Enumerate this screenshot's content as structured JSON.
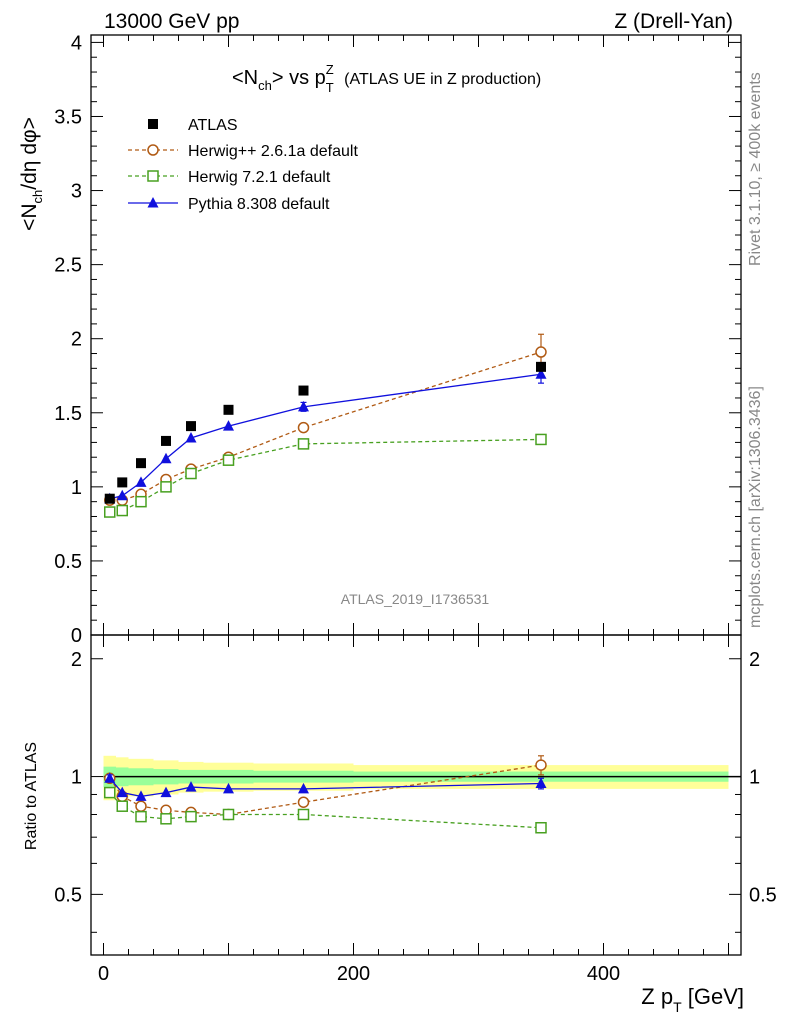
{
  "header": {
    "left": "13000 GeV pp",
    "right": "Z (Drell-Yan)"
  },
  "side": {
    "rivet": "Rivet 3.1.10, ≥ 400k events",
    "mcplots": "mcplots.cern.ch [arXiv:1306.3436]"
  },
  "chart_data": [
    {
      "type": "scatter",
      "title": "<N_ch> vs p_T^Z (ATLAS UE in Z production)",
      "ylabel": "<N_ch/dη dφ>",
      "xlim": [
        -10,
        510
      ],
      "ylim": [
        0,
        4.05
      ],
      "yticks": [
        0,
        0.5,
        1,
        1.5,
        2,
        2.5,
        3,
        3.5,
        4
      ],
      "legend": "top-left",
      "analysis_label": "ATLAS_2019_I1736531",
      "series": [
        {
          "name": "ATLAS",
          "color": "#000000",
          "marker": "filled-square",
          "x": [
            5,
            15,
            30,
            50,
            70,
            100,
            160,
            350
          ],
          "y": [
            0.92,
            1.03,
            1.16,
            1.31,
            1.41,
            1.52,
            1.65,
            1.81
          ]
        },
        {
          "name": "Herwig++ 2.6.1a default",
          "color": "#b05a14",
          "marker": "open-circle",
          "line": "dashed",
          "x": [
            5,
            15,
            30,
            50,
            70,
            100,
            160,
            350
          ],
          "y": [
            0.91,
            0.91,
            0.95,
            1.05,
            1.12,
            1.2,
            1.4,
            1.91
          ],
          "err": [
            0,
            0,
            0,
            0,
            0,
            0,
            0.03,
            0.12
          ]
        },
        {
          "name": "Herwig 7.2.1 default",
          "color": "#48a020",
          "marker": "open-square",
          "line": "dashed",
          "x": [
            5,
            15,
            30,
            50,
            70,
            100,
            160,
            350
          ],
          "y": [
            0.83,
            0.84,
            0.9,
            1.0,
            1.09,
            1.18,
            1.29,
            1.32
          ]
        },
        {
          "name": "Pythia 8.308 default",
          "color": "#1010dd",
          "marker": "filled-triangle",
          "line": "solid",
          "x": [
            5,
            15,
            30,
            50,
            70,
            100,
            160,
            350
          ],
          "y": [
            0.92,
            0.94,
            1.03,
            1.19,
            1.33,
            1.41,
            1.54,
            1.76
          ],
          "err": [
            0,
            0,
            0,
            0,
            0,
            0,
            0.03,
            0.06
          ]
        }
      ]
    },
    {
      "type": "scatter",
      "xlabel": "Z p_T [GeV]",
      "ylabel": "Ratio to ATLAS",
      "xlim": [
        -10,
        510
      ],
      "xticks": [
        0,
        200,
        400
      ],
      "ylim": [
        0.35,
        2.3
      ],
      "yscale": "log",
      "yticks": [
        0.5,
        1,
        2
      ],
      "bands": {
        "x_edges": [
          0,
          10,
          20,
          40,
          60,
          80,
          120,
          200,
          500
        ],
        "yellow_half_width": [
          0.13,
          0.12,
          0.11,
          0.1,
          0.09,
          0.085,
          0.08,
          0.07
        ],
        "green_half_width": [
          0.06,
          0.055,
          0.05,
          0.045,
          0.04,
          0.04,
          0.035,
          0.03
        ]
      },
      "series": [
        {
          "name": "Herwig++ 2.6.1a default",
          "x": [
            5,
            15,
            30,
            50,
            70,
            100,
            160,
            350
          ],
          "y": [
            0.99,
            0.89,
            0.84,
            0.82,
            0.81,
            0.8,
            0.86,
            1.07
          ],
          "err": [
            0,
            0,
            0,
            0,
            0,
            0,
            0.02,
            0.06
          ]
        },
        {
          "name": "Herwig 7.2.1 default",
          "x": [
            5,
            15,
            30,
            50,
            70,
            100,
            160,
            350
          ],
          "y": [
            0.91,
            0.84,
            0.79,
            0.78,
            0.79,
            0.8,
            0.8,
            0.74
          ]
        },
        {
          "name": "Pythia 8.308 default",
          "x": [
            5,
            15,
            30,
            50,
            70,
            100,
            160,
            350
          ],
          "y": [
            0.99,
            0.91,
            0.89,
            0.91,
            0.94,
            0.93,
            0.93,
            0.96
          ],
          "err": [
            0.02,
            0,
            0,
            0,
            0,
            0,
            0,
            0.03
          ]
        }
      ]
    }
  ]
}
